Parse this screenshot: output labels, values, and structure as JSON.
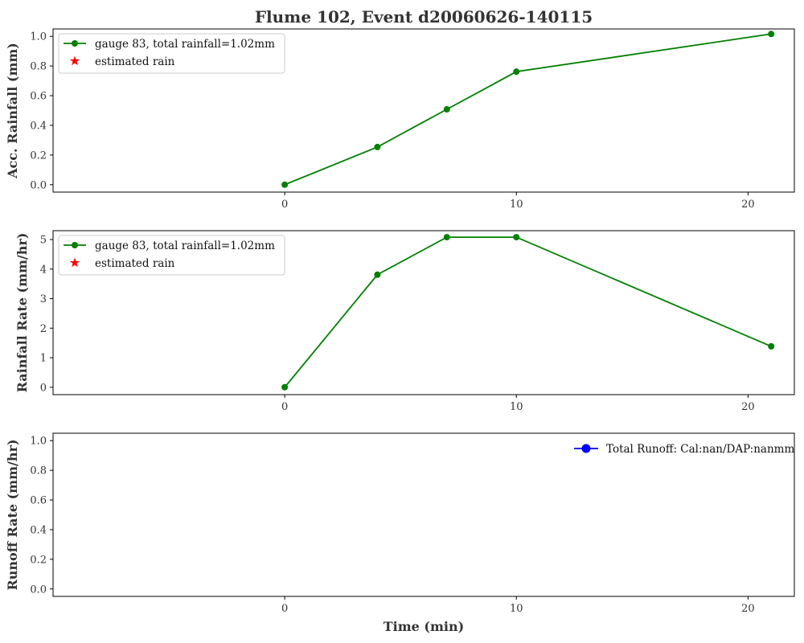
{
  "figure": {
    "title": "Flume 102, Event d20060626-140115"
  },
  "colors": {
    "gauge": "#008000",
    "estimated": "#ff0000",
    "runoff": "#0000ff"
  },
  "chart_data": [
    {
      "type": "line",
      "ylabel": "Acc. Rainfall (mm)",
      "xlabel": "",
      "xlim": [
        -10,
        22
      ],
      "ylim": [
        -0.05,
        1.05
      ],
      "xticks": [
        0,
        10,
        20
      ],
      "yticks": [
        0.0,
        0.2,
        0.4,
        0.6,
        0.8,
        1.0
      ],
      "ytick_labels": [
        "0.0",
        "0.2",
        "0.4",
        "0.6",
        "0.8",
        "1.0"
      ],
      "legend_position": "upper-left",
      "series": [
        {
          "name": "gauge 83, total rainfall=1.02mm",
          "color": "#008000",
          "marker": "circle",
          "x": [
            0,
            4,
            7,
            10,
            21
          ],
          "y": [
            0.0,
            0.254,
            0.508,
            0.762,
            1.016
          ]
        }
      ],
      "legend": [
        {
          "label": "gauge 83, total rainfall=1.02mm",
          "color": "#008000",
          "marker": "circle",
          "line": true
        },
        {
          "label": "estimated rain",
          "color": "#ff0000",
          "marker": "star",
          "line": false
        }
      ]
    },
    {
      "type": "line",
      "ylabel": "Rainfall Rate (mm/hr)",
      "xlabel": "",
      "xlim": [
        -10,
        22
      ],
      "ylim": [
        -0.25,
        5.3
      ],
      "xticks": [
        0,
        10,
        20
      ],
      "yticks": [
        0,
        1,
        2,
        3,
        4,
        5
      ],
      "ytick_labels": [
        "0",
        "1",
        "2",
        "3",
        "4",
        "5"
      ],
      "legend_position": "upper-left",
      "series": [
        {
          "name": "gauge 83, total rainfall=1.02mm",
          "color": "#008000",
          "marker": "circle",
          "x": [
            0,
            4,
            7,
            10,
            21
          ],
          "y": [
            0.0,
            3.81,
            5.08,
            5.08,
            1.385
          ]
        }
      ],
      "legend": [
        {
          "label": "gauge 83, total rainfall=1.02mm",
          "color": "#008000",
          "marker": "circle",
          "line": true
        },
        {
          "label": "estimated rain",
          "color": "#ff0000",
          "marker": "star",
          "line": false
        }
      ]
    },
    {
      "type": "line",
      "ylabel": "Runoff Rate (mm/hr)",
      "xlabel": "Time (min)",
      "xlim": [
        -10,
        22
      ],
      "ylim": [
        -0.05,
        1.05
      ],
      "xticks": [
        0,
        10,
        20
      ],
      "yticks": [
        0.0,
        0.2,
        0.4,
        0.6,
        0.8,
        1.0
      ],
      "ytick_labels": [
        "0.0",
        "0.2",
        "0.4",
        "0.6",
        "0.8",
        "1.0"
      ],
      "legend_position": "upper-right",
      "series": [],
      "legend": [
        {
          "label": "Total Runoff: Cal:nan/DAP:nanmm",
          "color": "#0000ff",
          "marker": "circle-large",
          "line": true
        }
      ]
    }
  ]
}
